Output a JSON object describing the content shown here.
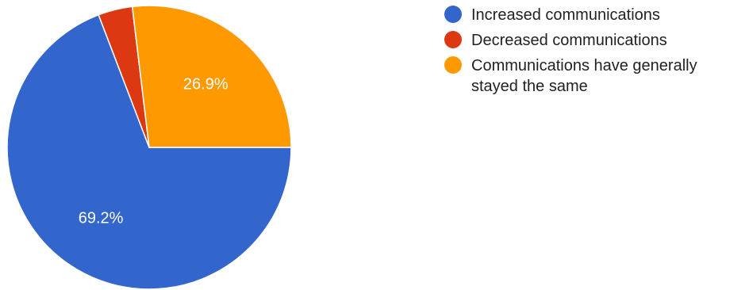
{
  "chart_data": {
    "type": "pie",
    "title": "",
    "legend_position": "right",
    "slices": [
      {
        "label": "Increased communications",
        "value": 69.2,
        "value_label": "69.2%",
        "color": "#3366cc"
      },
      {
        "label": "Decreased communications",
        "value": 3.9,
        "value_label": "",
        "color": "#dc3912"
      },
      {
        "label": "Communications have generally stayed the same",
        "value": 26.9,
        "value_label": "26.9%",
        "color": "#ff9900"
      }
    ]
  }
}
